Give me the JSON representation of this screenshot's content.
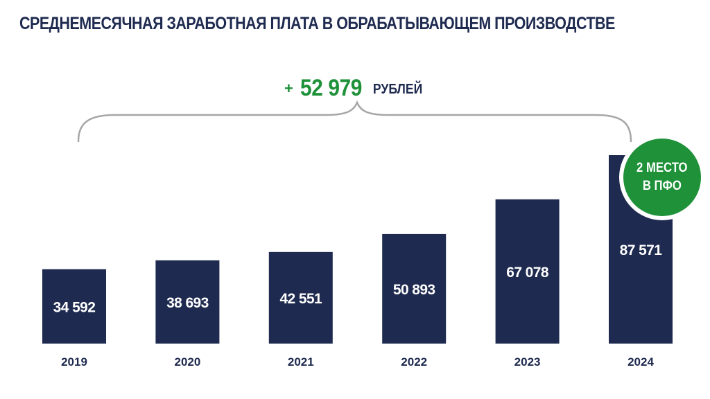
{
  "header": {
    "title": "СРЕДНЕМЕСЯЧНАЯ ЗАРАБОТНАЯ ПЛАТА В ОБРАБАТЫВАЮЩЕМ ПРОИЗВОДСТВЕ"
  },
  "increase": {
    "sign": "+",
    "amount": "52 979",
    "unit": "РУБЛЕЙ"
  },
  "badge": {
    "line1": "2 МЕСТО",
    "line2": "В ПФО"
  },
  "colors": {
    "bar": "#1e2a4f",
    "accent": "#1e9139",
    "brace": "#a6a6a6"
  },
  "chart_data": {
    "type": "bar",
    "title": "СРЕДНЕМЕСЯЧНАЯ ЗАРАБОТНАЯ ПЛАТА В ОБРАБАТЫВАЮЩЕМ ПРОИЗВОДСТВЕ",
    "categories": [
      "2019",
      "2020",
      "2021",
      "2022",
      "2023",
      "2024"
    ],
    "values": [
      34592,
      38693,
      42551,
      50893,
      67078,
      87571
    ],
    "value_labels": [
      "34 592",
      "38 693",
      "42 551",
      "50 893",
      "67 078",
      "87 571"
    ],
    "xlabel": "",
    "ylabel": "",
    "grid": false,
    "legend": "none"
  }
}
